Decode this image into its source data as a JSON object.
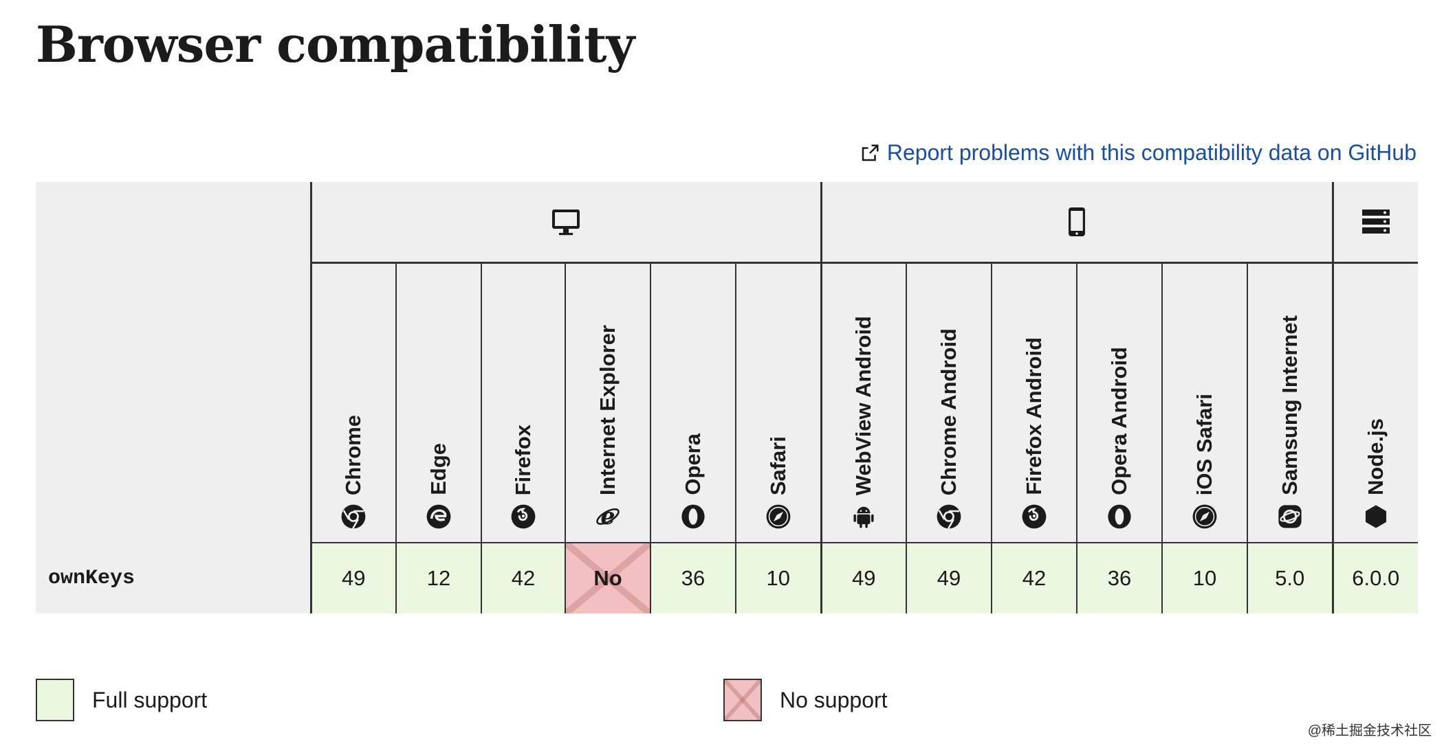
{
  "page": {
    "title": "Browser compatibility",
    "report_link": "Report problems with this compatibility data on GitHub"
  },
  "platforms": [
    {
      "name": "desktop",
      "icon": "desktop-icon"
    },
    {
      "name": "mobile",
      "icon": "mobile-icon"
    },
    {
      "name": "server",
      "icon": "server-icon"
    }
  ],
  "browsers": [
    {
      "name": "Chrome",
      "icon": "chrome-icon"
    },
    {
      "name": "Edge",
      "icon": "edge-icon"
    },
    {
      "name": "Firefox",
      "icon": "firefox-icon"
    },
    {
      "name": "Internet Explorer",
      "icon": "ie-icon"
    },
    {
      "name": "Opera",
      "icon": "opera-icon"
    },
    {
      "name": "Safari",
      "icon": "safari-icon"
    },
    {
      "name": "WebView Android",
      "icon": "android-icon"
    },
    {
      "name": "Chrome Android",
      "icon": "chrome-icon"
    },
    {
      "name": "Firefox Android",
      "icon": "firefox-icon"
    },
    {
      "name": "Opera Android",
      "icon": "opera-icon"
    },
    {
      "name": "iOS Safari",
      "icon": "safari-icon"
    },
    {
      "name": "Samsung Internet",
      "icon": "samsung-internet-icon"
    },
    {
      "name": "Node.js",
      "icon": "nodejs-icon"
    }
  ],
  "feature": {
    "name": "ownKeys",
    "support": [
      {
        "value": "49",
        "status": "full"
      },
      {
        "value": "12",
        "status": "full"
      },
      {
        "value": "42",
        "status": "full"
      },
      {
        "value": "No",
        "status": "none"
      },
      {
        "value": "36",
        "status": "full"
      },
      {
        "value": "10",
        "status": "full"
      },
      {
        "value": "49",
        "status": "full"
      },
      {
        "value": "49",
        "status": "full"
      },
      {
        "value": "42",
        "status": "full"
      },
      {
        "value": "36",
        "status": "full"
      },
      {
        "value": "10",
        "status": "full"
      },
      {
        "value": "5.0",
        "status": "full"
      },
      {
        "value": "6.0.0",
        "status": "full"
      }
    ]
  },
  "legend": {
    "full": "Full support",
    "none": "No support"
  },
  "watermark": "@稀土掘金技术社区",
  "colors": {
    "full_support": "#ecf7e2",
    "no_support": "#f2c0c0",
    "link": "#174ea6",
    "header_bg": "#efefef"
  }
}
